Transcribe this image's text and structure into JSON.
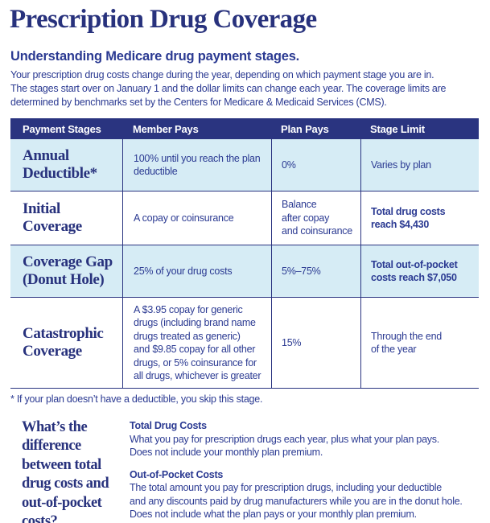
{
  "title": "Prescription Drug Coverage",
  "intro": {
    "heading": "Understanding Medicare drug payment stages.",
    "body_lines": [
      "Your prescription drug costs change during the year, depending on which payment stage you are in.",
      "The stages start over on January 1 and the dollar limits can change each year. The coverage limits are",
      "determined by benchmarks set by the Centers for Medicare & Medicaid Services (CMS)."
    ]
  },
  "table": {
    "columns": [
      "Payment Stages",
      "Member Pays",
      "Plan Pays",
      "Stage Limit"
    ],
    "rows": [
      {
        "stage": [
          "Annual",
          "Deductible*"
        ],
        "member": [
          "100% until you reach the plan",
          "deductible"
        ],
        "plan": [
          "0%"
        ],
        "limit": [
          "Varies by plan"
        ]
      },
      {
        "stage": [
          "Initial",
          "Coverage"
        ],
        "member": [
          "A copay or coinsurance"
        ],
        "plan": [
          "Balance",
          "after copay",
          "and coinsurance"
        ],
        "limit": [
          "Total drug costs",
          "reach $4,430"
        ]
      },
      {
        "stage": [
          "Coverage Gap",
          "(Donut Hole)"
        ],
        "member": [
          "25% of your drug costs"
        ],
        "plan": [
          "5%–75%"
        ],
        "limit": [
          "Total out-of-pocket",
          "costs reach $7,050"
        ]
      },
      {
        "stage": [
          "Catastrophic",
          "Coverage"
        ],
        "member": [
          "A $3.95 copay for generic",
          "drugs (including brand name",
          "drugs treated as generic)",
          "and $9.85 copay for all other",
          "drugs, or 5% coinsurance for",
          "all drugs, whichever is greater"
        ],
        "plan": [
          "15%"
        ],
        "limit": [
          "Through the end",
          "of the year"
        ]
      }
    ]
  },
  "footnote": "* If your plan doesn’t have a deductible, you skip this stage.",
  "faq": {
    "question_lines": [
      "What’s the",
      "difference",
      "between total",
      "drug costs and",
      "out-of-pocket",
      "costs?"
    ],
    "definitions": [
      {
        "term": "Total Drug Costs",
        "body_lines": [
          "What you pay for prescription drugs each year, plus what your plan pays.",
          "Does not include your monthly plan premium."
        ]
      },
      {
        "term": "Out-of-Pocket Costs",
        "body_lines": [
          "The total amount you pay for prescription drugs, including your deductible",
          "and any discounts paid by drug manufacturers while you are in the donut hole.",
          "Does not include what the plan pays or your monthly plan premium."
        ]
      }
    ]
  },
  "colors": {
    "navy": "#2a3480",
    "heading_navy": "#28327d",
    "body_blue": "#2b3a92",
    "row_light_blue": "#d6ecf5",
    "header_text": "#ffffff"
  }
}
